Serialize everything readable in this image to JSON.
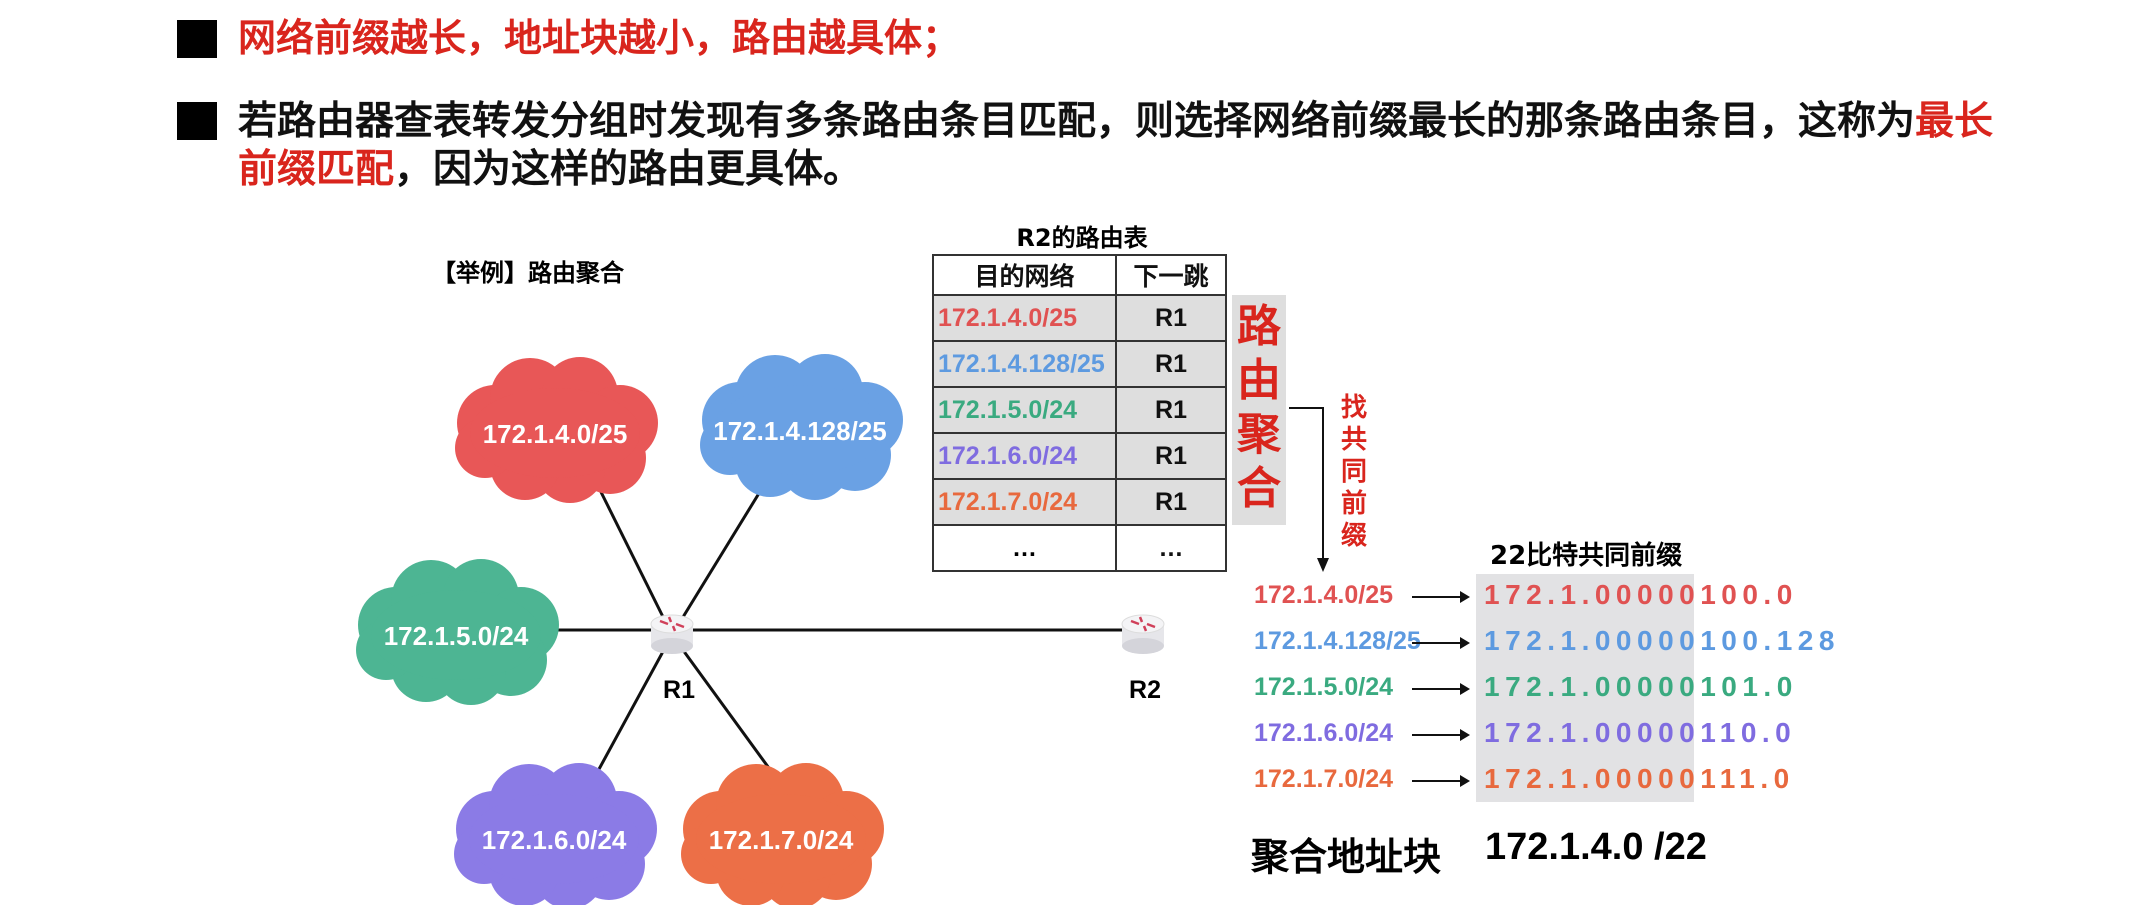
{
  "bullets": [
    {
      "text": "网络前缀越长，地址块越小，路由越具体；"
    },
    {
      "part1": "若路由器查表转发分组时发现有多条路由条目匹配，则选择网络前缀最长的那条路由条目，这称为",
      "part1_red": "最长",
      "part2_red": "前缀匹配",
      "part2": "，因为这样的路由更具体。"
    }
  ],
  "example_label": "【举例】路由聚合",
  "routing_table": {
    "title": "R2的路由表",
    "headers": [
      "目的网络",
      "下一跳"
    ],
    "rows": [
      {
        "dest": "172.1.4.0/25",
        "next": "R1",
        "color": "#e05252"
      },
      {
        "dest": "172.1.4.128/25",
        "next": "R1",
        "color": "#5d9ae0"
      },
      {
        "dest": "172.1.5.0/24",
        "next": "R1",
        "color": "#3aaa80"
      },
      {
        "dest": "172.1.6.0/24",
        "next": "R1",
        "color": "#7f6ce0"
      },
      {
        "dest": "172.1.7.0/24",
        "next": "R1",
        "color": "#e8693e"
      },
      {
        "dest": "…",
        "next": "…",
        "color": "#111111"
      }
    ]
  },
  "aggregation_label": "路由聚合",
  "find_prefix_label": "找共同前缀",
  "common_prefix_title": "22比特共同前缀",
  "prefix_rows": [
    {
      "network": "172.1.4.0/25",
      "prefix": "172.1.000001",
      "rest": "00.0",
      "color": "#e05252"
    },
    {
      "network": "172.1.4.128/25",
      "prefix": "172.1.000001",
      "rest": "00.128",
      "color": "#5d9ae0"
    },
    {
      "network": "172.1.5.0/24",
      "prefix": "172.1.000001",
      "rest": "01.0",
      "color": "#3aaa80"
    },
    {
      "network": "172.1.6.0/24",
      "prefix": "172.1.000001",
      "rest": "10.0",
      "color": "#7f6ce0"
    },
    {
      "network": "172.1.7.0/24",
      "prefix": "172.1.000001",
      "rest": "11.0",
      "color": "#e8693e"
    }
  ],
  "aggregate": {
    "label": "聚合地址块",
    "value": "172.1.4.0 /22"
  },
  "network": {
    "clouds": [
      {
        "label": "172.1.4.0/25",
        "color": "#e85757"
      },
      {
        "label": "172.1.4.128/25",
        "color": "#6aa1e4"
      },
      {
        "label": "172.1.5.0/24",
        "color": "#4db593"
      },
      {
        "label": "172.1.6.0/24",
        "color": "#8b7be6"
      },
      {
        "label": "172.1.7.0/24",
        "color": "#ec6f47"
      }
    ],
    "routers": [
      {
        "label": "R1"
      },
      {
        "label": "R2"
      }
    ]
  }
}
